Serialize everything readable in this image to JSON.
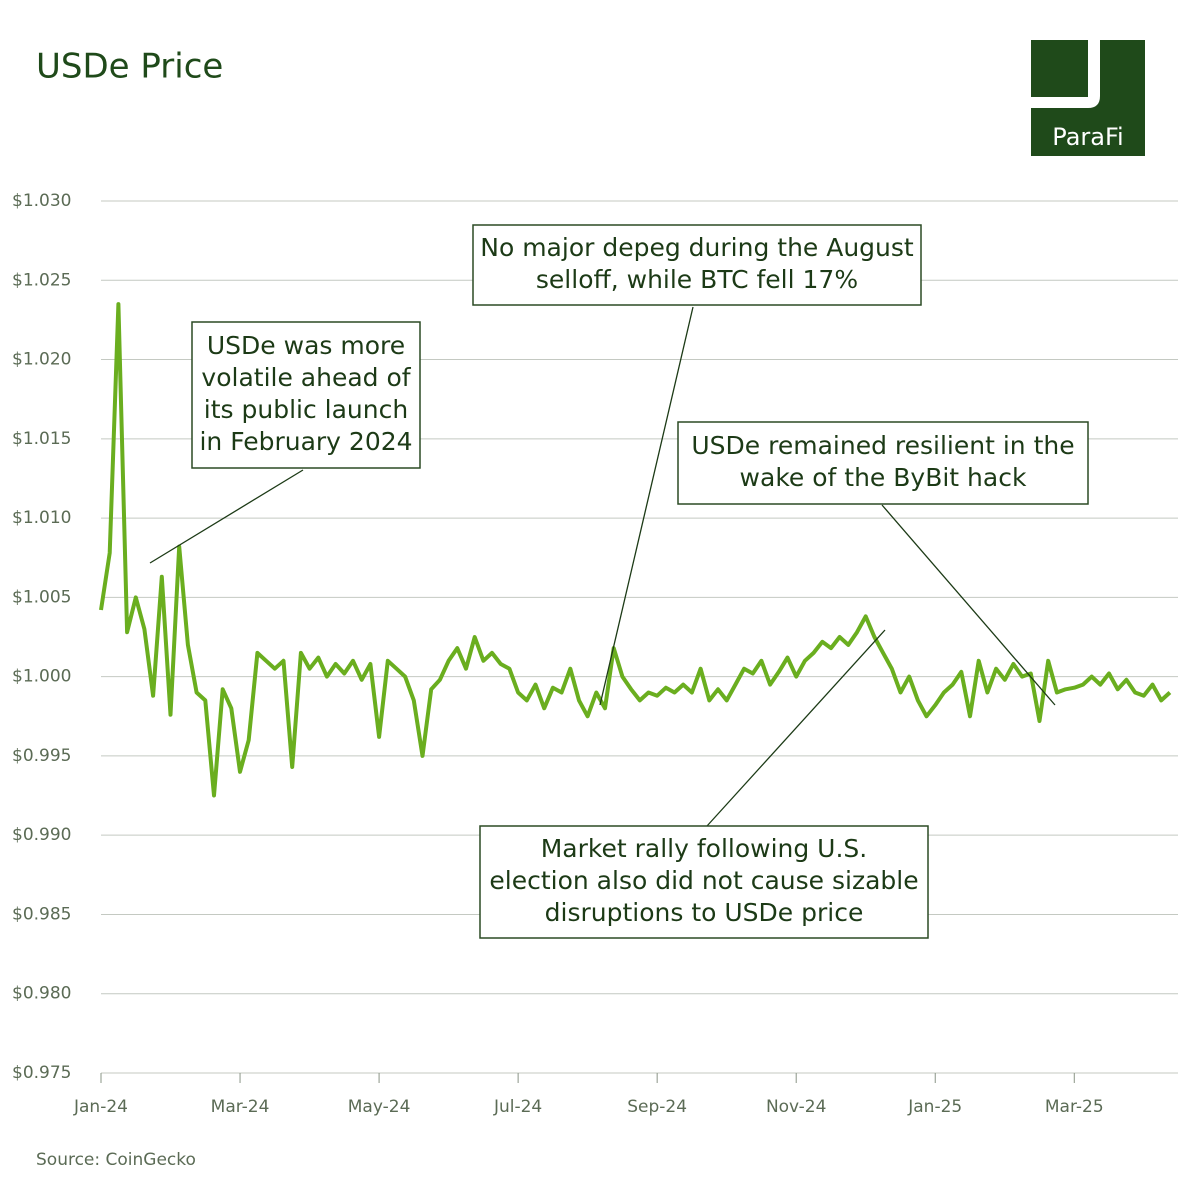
{
  "chart_data": {
    "type": "line",
    "title": "USDe Price",
    "source": "Source: CoinGecko",
    "brand": "ParaFi",
    "categories": [
      "Jan-24",
      null,
      null,
      null,
      null,
      null,
      null,
      null,
      null,
      null,
      null,
      null,
      null,
      null,
      null,
      null,
      "Mar-24",
      null,
      null,
      null,
      null,
      null,
      null,
      null,
      null,
      null,
      null,
      null,
      null,
      null,
      null,
      null,
      "May-24",
      null,
      null,
      null,
      null,
      null,
      null,
      null,
      null,
      null,
      null,
      null,
      null,
      null,
      null,
      null,
      "Jul-24",
      null,
      null,
      null,
      null,
      null,
      null,
      null,
      null,
      null,
      null,
      null,
      null,
      null,
      null,
      null,
      "Sep-24",
      null,
      null,
      null,
      null,
      null,
      null,
      null,
      null,
      null,
      null,
      null,
      null,
      null,
      null,
      null,
      "Nov-24",
      null,
      null,
      null,
      null,
      null,
      null,
      null,
      null,
      null,
      null,
      null,
      null,
      null,
      null,
      null,
      "Jan-25",
      null,
      null,
      null,
      null,
      null,
      null,
      null,
      null,
      null,
      null,
      null,
      null,
      null,
      null,
      null,
      "Mar-25",
      null,
      null,
      null,
      null,
      null,
      null,
      null,
      null,
      null,
      null,
      null
    ],
    "series": [
      {
        "name": "USDe",
        "color": "#6aae1f",
        "values": [
          1.0042,
          1.0078,
          1.0235,
          1.0028,
          1.005,
          1.003,
          0.9988,
          1.0063,
          0.9976,
          1.0082,
          1.002,
          0.999,
          0.9985,
          0.9925,
          0.9992,
          0.998,
          0.994,
          0.996,
          1.0015,
          1.001,
          1.0005,
          1.001,
          0.9943,
          1.0015,
          1.0005,
          1.0012,
          1.0,
          1.0008,
          1.0002,
          1.001,
          0.9998,
          1.0008,
          0.9962,
          1.001,
          1.0005,
          1.0,
          0.9985,
          0.995,
          0.9992,
          0.9998,
          1.001,
          1.0018,
          1.0005,
          1.0025,
          1.001,
          1.0015,
          1.0008,
          1.0005,
          0.999,
          0.9985,
          0.9995,
          0.998,
          0.9993,
          0.999,
          1.0005,
          0.9985,
          0.9975,
          0.999,
          0.998,
          1.0018,
          1.0,
          0.9992,
          0.9985,
          0.999,
          0.9988,
          0.9993,
          0.999,
          0.9995,
          0.999,
          1.0005,
          0.9985,
          0.9992,
          0.9985,
          0.9995,
          1.0005,
          1.0002,
          1.001,
          0.9995,
          1.0003,
          1.0012,
          1.0,
          1.001,
          1.0015,
          1.0022,
          1.0018,
          1.0025,
          1.002,
          1.0028,
          1.0038,
          1.0025,
          1.0015,
          1.0005,
          0.999,
          1.0,
          0.9985,
          0.9975,
          0.9982,
          0.999,
          0.9995,
          1.0003,
          0.9975,
          1.001,
          0.999,
          1.0005,
          0.9998,
          1.0008,
          1.0,
          1.0002,
          0.9972,
          1.001,
          0.999,
          0.9992,
          0.9993,
          0.9995,
          1.0,
          0.9995,
          1.0002,
          0.9992,
          0.9998,
          0.999,
          0.9988,
          0.9995,
          0.9985,
          0.999
        ]
      }
    ],
    "ylim": [
      0.975,
      1.03
    ],
    "yticks": [
      {
        "value": 0.975,
        "label": "$0.975"
      },
      {
        "value": 0.98,
        "label": "$0.980"
      },
      {
        "value": 0.985,
        "label": "$0.985"
      },
      {
        "value": 0.99,
        "label": "$0.990"
      },
      {
        "value": 0.995,
        "label": "$0.995"
      },
      {
        "value": 1.0,
        "label": "$1.000"
      },
      {
        "value": 1.005,
        "label": "$1.005"
      },
      {
        "value": 1.01,
        "label": "$1.010"
      },
      {
        "value": 1.015,
        "label": "$1.015"
      },
      {
        "value": 1.02,
        "label": "$1.020"
      },
      {
        "value": 1.025,
        "label": "$1.025"
      },
      {
        "value": 1.03,
        "label": "$1.030"
      }
    ],
    "grid": true,
    "annotations": [
      {
        "lines": [
          "USDe was more",
          "volatile ahead of",
          "its public launch",
          "in February 2024"
        ]
      },
      {
        "lines": [
          "No major depeg during the August",
          "selloff, while BTC fell 17%"
        ]
      },
      {
        "lines": [
          "USDe remained resilient in the",
          "wake of the ByBit hack"
        ]
      },
      {
        "lines": [
          "Market rally following U.S.",
          "election also did not cause sizable",
          "disruptions to USDe price"
        ]
      }
    ]
  }
}
